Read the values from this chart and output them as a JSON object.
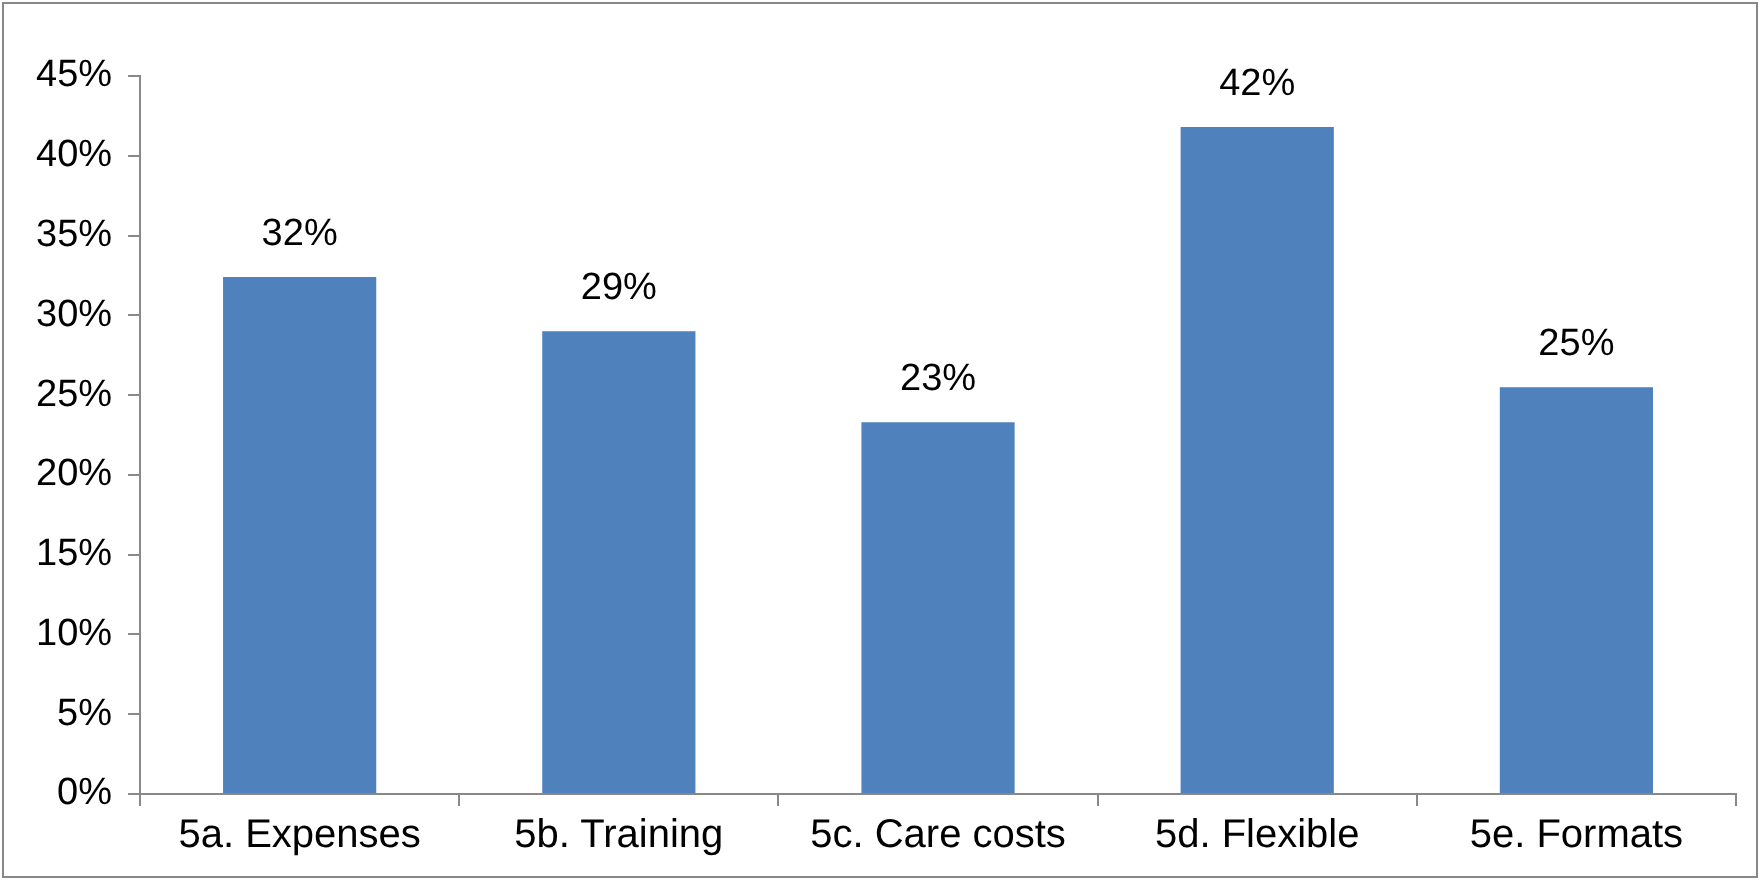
{
  "chart_data": {
    "type": "bar",
    "categories": [
      "5a. Expenses",
      "5b. Training",
      "5c. Care costs",
      "5d. Flexible",
      "5e. Formats"
    ],
    "values": [
      32.4,
      29,
      23.3,
      41.8,
      25.5
    ],
    "value_labels": [
      "32%",
      "29%",
      "23%",
      "42%",
      "25%"
    ],
    "color": "#4f81bd",
    "grid": false,
    "legend": false,
    "ylim": [
      0,
      45
    ],
    "yticks": [
      {
        "value": 0,
        "label": "0%"
      },
      {
        "value": 5,
        "label": "5%"
      },
      {
        "value": 10,
        "label": "10%"
      },
      {
        "value": 15,
        "label": "15%"
      },
      {
        "value": 20,
        "label": "20%"
      },
      {
        "value": 25,
        "label": "25%"
      },
      {
        "value": 30,
        "label": "30%"
      },
      {
        "value": 35,
        "label": "35%"
      },
      {
        "value": 40,
        "label": "40%"
      },
      {
        "value": 45,
        "label": "45%"
      }
    ]
  }
}
